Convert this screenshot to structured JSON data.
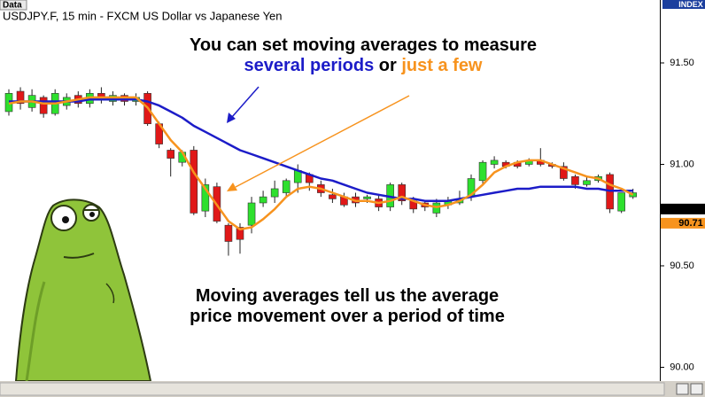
{
  "chart_data": {
    "type": "candlestick",
    "header": "Data",
    "title": "USDJPY.F, 15 min - FXCM US Dollar vs Japanese Yen",
    "axis_label": "INDEX",
    "categories": [
      null,
      null,
      null,
      null,
      null,
      null,
      null,
      null,
      null,
      null,
      null,
      null,
      null,
      null,
      null,
      null,
      null,
      null,
      null,
      null,
      null,
      null,
      null,
      null,
      null,
      null,
      null,
      null,
      null,
      null,
      null,
      null,
      null,
      null,
      null,
      null,
      null,
      null,
      null,
      null,
      null,
      null,
      null,
      null,
      null,
      null,
      null,
      null,
      null,
      null,
      null,
      null,
      null,
      null,
      null
    ],
    "open": [
      91.26,
      91.36,
      91.28,
      91.33,
      91.25,
      91.29,
      91.34,
      91.3,
      91.35,
      91.31,
      91.34,
      91.31,
      91.35,
      91.2,
      91.07,
      91.01,
      91.07,
      90.77,
      90.89,
      90.7,
      90.69,
      90.7,
      90.81,
      90.84,
      90.86,
      90.91,
      90.95,
      90.9,
      90.85,
      90.84,
      90.84,
      90.83,
      90.83,
      90.79,
      90.9,
      90.82,
      90.81,
      90.76,
      90.8,
      90.81,
      90.84,
      90.92,
      91.0,
      91.01,
      91.01,
      91.0,
      91.02,
      91.0,
      90.99,
      90.94,
      90.9,
      90.92,
      90.95,
      90.77,
      90.84
    ],
    "high": [
      91.37,
      91.38,
      91.37,
      91.34,
      91.37,
      91.35,
      91.36,
      91.37,
      91.38,
      91.36,
      91.35,
      91.35,
      91.36,
      91.21,
      91.08,
      91.07,
      91.09,
      90.93,
      90.91,
      90.71,
      90.71,
      90.84,
      90.87,
      90.92,
      90.93,
      91.0,
      90.96,
      90.92,
      90.88,
      90.86,
      90.86,
      90.85,
      90.85,
      90.91,
      90.91,
      90.84,
      90.82,
      90.83,
      90.84,
      90.87,
      90.95,
      91.02,
      91.04,
      91.02,
      91.02,
      91.03,
      91.08,
      91.01,
      91.01,
      90.95,
      90.94,
      90.95,
      90.96,
      90.86,
      90.88
    ],
    "low": [
      91.24,
      91.27,
      91.26,
      91.23,
      91.24,
      91.27,
      91.28,
      91.28,
      91.3,
      91.29,
      91.29,
      91.29,
      91.19,
      91.08,
      90.94,
      90.99,
      90.75,
      90.74,
      90.71,
      90.55,
      90.56,
      90.66,
      90.79,
      90.81,
      90.84,
      90.86,
      90.87,
      90.84,
      90.81,
      90.79,
      90.79,
      90.81,
      90.77,
      90.77,
      90.8,
      90.76,
      90.77,
      90.74,
      90.78,
      90.8,
      90.82,
      90.9,
      90.98,
      90.98,
      90.98,
      90.99,
      90.99,
      90.98,
      90.92,
      90.88,
      90.89,
      90.91,
      90.76,
      90.76,
      90.83
    ],
    "close": [
      91.35,
      91.3,
      91.34,
      91.25,
      91.35,
      91.33,
      91.3,
      91.35,
      91.32,
      91.34,
      91.31,
      91.33,
      91.2,
      91.1,
      91.03,
      91.06,
      90.76,
      90.9,
      90.72,
      90.62,
      90.63,
      90.81,
      90.84,
      90.88,
      90.92,
      90.97,
      90.91,
      90.86,
      90.83,
      90.8,
      90.81,
      90.84,
      90.79,
      90.9,
      90.82,
      90.78,
      90.79,
      90.81,
      90.82,
      90.83,
      90.93,
      91.01,
      91.02,
      90.99,
      90.99,
      91.02,
      91.0,
      90.99,
      90.93,
      90.9,
      90.92,
      90.94,
      90.78,
      90.86,
      90.86
    ],
    "up_color": "#2ee02e",
    "down_color": "#e01818",
    "series": [
      {
        "color": "#1c1cc8",
        "values": [
          91.31,
          91.31,
          91.31,
          91.31,
          91.31,
          91.31,
          91.31,
          91.32,
          91.32,
          91.32,
          91.32,
          91.32,
          91.31,
          91.29,
          91.26,
          91.23,
          91.19,
          91.16,
          91.13,
          91.1,
          91.07,
          91.05,
          91.03,
          91.01,
          90.99,
          90.97,
          90.95,
          90.93,
          90.92,
          90.9,
          90.88,
          90.86,
          90.85,
          90.84,
          90.83,
          90.83,
          90.82,
          90.82,
          90.82,
          90.83,
          90.84,
          90.85,
          90.86,
          90.87,
          90.88,
          90.88,
          90.89,
          90.89,
          90.89,
          90.89,
          90.88,
          90.88,
          90.87,
          90.87,
          90.87
        ]
      },
      {
        "color": "#f7931e",
        "values": [
          91.3,
          91.31,
          91.31,
          91.3,
          91.3,
          91.31,
          91.32,
          91.33,
          91.33,
          91.33,
          91.33,
          91.33,
          91.28,
          91.2,
          91.12,
          91.06,
          90.96,
          90.88,
          90.8,
          90.72,
          90.68,
          90.69,
          90.73,
          90.78,
          90.84,
          90.88,
          90.89,
          90.88,
          90.86,
          90.84,
          90.82,
          90.82,
          90.81,
          90.82,
          90.84,
          90.82,
          90.8,
          90.79,
          90.8,
          90.82,
          90.85,
          90.9,
          90.96,
          90.99,
          91.01,
          91.02,
          91.02,
          91.0,
          90.98,
          90.96,
          90.94,
          90.93,
          90.9,
          90.88,
          90.85
        ]
      }
    ],
    "price_labels": [
      {
        "value": 90.78,
        "label": "90.78",
        "color": "#000000"
      },
      {
        "value": 90.71,
        "label": "90.71",
        "color": "#f7931e"
      }
    ],
    "ylim": [
      89.93,
      91.81
    ],
    "yticks": [
      {
        "value": 90,
        "label": "90.00"
      },
      {
        "value": 90.5,
        "label": "90.50"
      },
      {
        "value": 91,
        "label": "91.00"
      },
      {
        "value": 91.5,
        "label": "91.50"
      }
    ],
    "grid": false,
    "annotations": [
      [
        {
          "text": "You can set moving averages to measure",
          "color": "#000000"
        }
      ],
      [
        {
          "text": "several periods",
          "color": "#1c1cc8"
        },
        {
          "text": "or",
          "color": "#000000"
        },
        {
          "text": "just a few",
          "color": "#f7931e"
        }
      ],
      [
        {
          "text": "Moving averages tell us the average",
          "color": "#000000"
        }
      ],
      [
        {
          "text": "price movement over a period of time",
          "color": "#000000"
        }
      ]
    ]
  }
}
